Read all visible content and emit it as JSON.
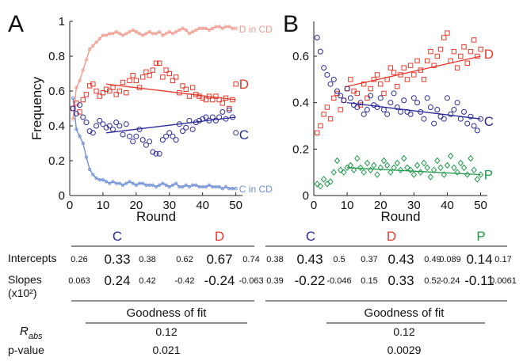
{
  "colors": {
    "C": "#2b2b9a",
    "D": "#e8392a",
    "P": "#1f9a4a",
    "CinCD": "#6f8fd8",
    "DinCD": "#f29a8e",
    "axis": "#222222"
  },
  "panel_labels": [
    "A",
    "B"
  ],
  "chart_data": [
    {
      "panel": "A",
      "type": "scatter",
      "xlabel": "Round",
      "ylabel": "Frequency",
      "xlim": [
        0,
        52
      ],
      "ylim": [
        0,
        1
      ],
      "xticks": [
        "0",
        "10",
        "20",
        "30",
        "40",
        "50"
      ],
      "yticks": [
        "0",
        "0.2",
        "0.4",
        "0.6",
        "0.8",
        "1"
      ],
      "series": [
        {
          "name": "D in CD",
          "kind": "line-marker",
          "color": "#f29a8e",
          "x": [
            1,
            2,
            3,
            4,
            5,
            6,
            7,
            8,
            9,
            10,
            11,
            12,
            13,
            14,
            15,
            16,
            17,
            18,
            19,
            20,
            21,
            22,
            23,
            24,
            25,
            26,
            27,
            28,
            29,
            30,
            31,
            32,
            33,
            34,
            35,
            36,
            37,
            38,
            39,
            40,
            41,
            42,
            43,
            44,
            45,
            46,
            47,
            48,
            49,
            50
          ],
          "y": [
            0.44,
            0.62,
            0.66,
            0.72,
            0.78,
            0.84,
            0.86,
            0.88,
            0.9,
            0.92,
            0.92,
            0.93,
            0.93,
            0.94,
            0.93,
            0.92,
            0.93,
            0.94,
            0.95,
            0.94,
            0.93,
            0.92,
            0.93,
            0.94,
            0.93,
            0.93,
            0.94,
            0.92,
            0.93,
            0.94,
            0.93,
            0.94,
            0.95,
            0.96,
            0.95,
            0.93,
            0.94,
            0.95,
            0.96,
            0.96,
            0.96,
            0.95,
            0.96,
            0.97,
            0.97,
            0.96,
            0.97,
            0.97,
            0.96,
            0.96
          ]
        },
        {
          "name": "C in CD",
          "kind": "line-marker",
          "color": "#6f8fd8",
          "x": [
            1,
            2,
            3,
            4,
            5,
            6,
            7,
            8,
            9,
            10,
            11,
            12,
            13,
            14,
            15,
            16,
            17,
            18,
            19,
            20,
            21,
            22,
            23,
            24,
            25,
            26,
            27,
            28,
            29,
            30,
            31,
            32,
            33,
            34,
            35,
            36,
            37,
            38,
            39,
            40,
            41,
            42,
            43,
            44,
            45,
            46,
            47,
            48,
            49,
            50
          ],
          "y": [
            0.56,
            0.38,
            0.34,
            0.3,
            0.22,
            0.15,
            0.12,
            0.1,
            0.09,
            0.09,
            0.08,
            0.07,
            0.08,
            0.07,
            0.07,
            0.06,
            0.07,
            0.08,
            0.07,
            0.06,
            0.07,
            0.07,
            0.06,
            0.06,
            0.06,
            0.05,
            0.06,
            0.07,
            0.06,
            0.05,
            0.06,
            0.07,
            0.05,
            0.05,
            0.06,
            0.05,
            0.06,
            0.06,
            0.05,
            0.05,
            0.05,
            0.06,
            0.05,
            0.05,
            0.05,
            0.04,
            0.05,
            0.04,
            0.04,
            0.04
          ]
        },
        {
          "name": "D",
          "kind": "marker",
          "marker": "square",
          "color": "#e8392a",
          "x": [
            1,
            2,
            3,
            4,
            5,
            6,
            7,
            8,
            9,
            10,
            11,
            12,
            13,
            14,
            15,
            16,
            17,
            18,
            19,
            20,
            21,
            22,
            23,
            24,
            25,
            26,
            27,
            28,
            29,
            30,
            31,
            32,
            33,
            34,
            35,
            36,
            37,
            38,
            39,
            40,
            41,
            42,
            43,
            44,
            45,
            46,
            47,
            48,
            49,
            50
          ],
          "y": [
            0.5,
            0.53,
            0.48,
            0.55,
            0.58,
            0.63,
            0.64,
            0.6,
            0.57,
            0.59,
            0.61,
            0.6,
            0.62,
            0.58,
            0.6,
            0.65,
            0.59,
            0.66,
            0.69,
            0.66,
            0.62,
            0.68,
            0.71,
            0.69,
            0.72,
            0.76,
            0.76,
            0.68,
            0.72,
            0.7,
            0.66,
            0.68,
            0.59,
            0.63,
            0.61,
            0.57,
            0.62,
            0.58,
            0.57,
            0.56,
            0.55,
            0.57,
            0.55,
            0.57,
            0.55,
            0.53,
            0.56,
            0.5,
            0.55,
            0.64
          ]
        },
        {
          "name": "C",
          "kind": "marker",
          "marker": "circle",
          "color": "#2b2b9a",
          "x": [
            1,
            2,
            3,
            4,
            5,
            6,
            7,
            8,
            9,
            10,
            11,
            12,
            13,
            14,
            15,
            16,
            17,
            18,
            19,
            20,
            21,
            22,
            23,
            24,
            25,
            26,
            27,
            28,
            29,
            30,
            31,
            32,
            33,
            34,
            35,
            36,
            37,
            38,
            39,
            40,
            41,
            42,
            43,
            44,
            45,
            46,
            47,
            48,
            49,
            50
          ],
          "y": [
            0.5,
            0.47,
            0.52,
            0.45,
            0.42,
            0.37,
            0.36,
            0.4,
            0.43,
            0.41,
            0.39,
            0.4,
            0.38,
            0.42,
            0.4,
            0.35,
            0.41,
            0.34,
            0.31,
            0.34,
            0.38,
            0.32,
            0.29,
            0.31,
            0.25,
            0.24,
            0.24,
            0.32,
            0.34,
            0.36,
            0.34,
            0.32,
            0.41,
            0.37,
            0.39,
            0.43,
            0.38,
            0.42,
            0.43,
            0.44,
            0.45,
            0.43,
            0.45,
            0.43,
            0.45,
            0.48,
            0.44,
            0.49,
            0.45,
            0.36
          ]
        }
      ],
      "fits": [
        {
          "name": "D",
          "color": "#e8392a",
          "x": [
            11,
            50
          ],
          "y": [
            0.64,
            0.55
          ]
        },
        {
          "name": "C",
          "color": "#2b2b9a",
          "x": [
            11,
            50
          ],
          "y": [
            0.36,
            0.45
          ]
        }
      ],
      "annotations": [
        {
          "text": "D in CD",
          "series": "D in CD",
          "x": 51,
          "y": 0.96
        },
        {
          "text": "D",
          "series": "D",
          "x": 51,
          "y": 0.64
        },
        {
          "text": "C",
          "series": "C",
          "x": 51,
          "y": 0.35
        },
        {
          "text": "C in CD",
          "series": "C in CD",
          "x": 51,
          "y": 0.04
        }
      ]
    },
    {
      "panel": "B",
      "type": "scatter",
      "xlabel": "Round",
      "ylabel": "",
      "xlim": [
        0,
        52
      ],
      "ylim": [
        0,
        0.75
      ],
      "xticks": [
        "0",
        "10",
        "20",
        "30",
        "40",
        "50"
      ],
      "yticks": [
        "0",
        "0.2",
        "0.4",
        "0.6"
      ],
      "series": [
        {
          "name": "D",
          "kind": "marker",
          "marker": "square",
          "color": "#e8392a",
          "x": [
            1,
            2,
            3,
            4,
            5,
            6,
            7,
            8,
            9,
            10,
            11,
            12,
            13,
            14,
            15,
            16,
            17,
            18,
            19,
            20,
            21,
            22,
            23,
            24,
            25,
            26,
            27,
            28,
            29,
            30,
            31,
            32,
            33,
            34,
            35,
            36,
            37,
            38,
            39,
            40,
            41,
            42,
            43,
            44,
            45,
            46,
            47,
            48,
            49,
            50
          ],
          "y": [
            0.27,
            0.3,
            0.35,
            0.38,
            0.33,
            0.42,
            0.44,
            0.37,
            0.41,
            0.46,
            0.5,
            0.45,
            0.44,
            0.39,
            0.48,
            0.42,
            0.46,
            0.5,
            0.52,
            0.48,
            0.44,
            0.5,
            0.55,
            0.53,
            0.47,
            0.52,
            0.55,
            0.5,
            0.56,
            0.52,
            0.58,
            0.54,
            0.5,
            0.58,
            0.62,
            0.56,
            0.6,
            0.63,
            0.68,
            0.7,
            0.58,
            0.62,
            0.55,
            0.6,
            0.64,
            0.57,
            0.62,
            0.67,
            0.6,
            0.63
          ]
        },
        {
          "name": "C",
          "kind": "marker",
          "marker": "circle",
          "color": "#2b2b9a",
          "x": [
            1,
            2,
            3,
            4,
            5,
            6,
            7,
            8,
            9,
            10,
            11,
            12,
            13,
            14,
            15,
            16,
            17,
            18,
            19,
            20,
            21,
            22,
            23,
            24,
            25,
            26,
            27,
            28,
            29,
            30,
            31,
            32,
            33,
            34,
            35,
            36,
            37,
            38,
            39,
            40,
            41,
            42,
            43,
            44,
            45,
            46,
            47,
            48,
            49,
            50
          ],
          "y": [
            0.68,
            0.62,
            0.55,
            0.52,
            0.48,
            0.5,
            0.45,
            0.43,
            0.41,
            0.46,
            0.42,
            0.39,
            0.38,
            0.4,
            0.35,
            0.37,
            0.43,
            0.39,
            0.38,
            0.42,
            0.37,
            0.35,
            0.4,
            0.44,
            0.38,
            0.36,
            0.41,
            0.36,
            0.35,
            0.42,
            0.4,
            0.36,
            0.33,
            0.42,
            0.38,
            0.31,
            0.37,
            0.34,
            0.33,
            0.42,
            0.35,
            0.37,
            0.4,
            0.33,
            0.36,
            0.31,
            0.34,
            0.3,
            0.28,
            0.33
          ]
        },
        {
          "name": "P",
          "kind": "marker",
          "marker": "diamond",
          "color": "#1f9a4a",
          "x": [
            1,
            2,
            3,
            4,
            5,
            6,
            7,
            8,
            9,
            10,
            11,
            12,
            13,
            14,
            15,
            16,
            17,
            18,
            19,
            20,
            21,
            22,
            23,
            24,
            25,
            26,
            27,
            28,
            29,
            30,
            31,
            32,
            33,
            34,
            35,
            36,
            37,
            38,
            39,
            40,
            41,
            42,
            43,
            44,
            45,
            46,
            47,
            48,
            49,
            50
          ],
          "y": [
            0.05,
            0.04,
            0.07,
            0.05,
            0.06,
            0.1,
            0.15,
            0.11,
            0.1,
            0.12,
            0.13,
            0.11,
            0.16,
            0.12,
            0.1,
            0.14,
            0.11,
            0.13,
            0.09,
            0.12,
            0.15,
            0.13,
            0.1,
            0.12,
            0.14,
            0.11,
            0.16,
            0.12,
            0.11,
            0.09,
            0.13,
            0.1,
            0.14,
            0.12,
            0.08,
            0.11,
            0.15,
            0.12,
            0.09,
            0.13,
            0.17,
            0.12,
            0.1,
            0.14,
            0.12,
            0.09,
            0.16,
            0.11,
            0.07,
            0.09
          ]
        }
      ],
      "fits": [
        {
          "name": "D",
          "color": "#e8392a",
          "x": [
            10,
            50
          ],
          "y": [
            0.47,
            0.6
          ]
        },
        {
          "name": "C",
          "color": "#2b2b9a",
          "x": [
            10,
            50
          ],
          "y": [
            0.4,
            0.33
          ]
        },
        {
          "name": "P",
          "color": "#1f9a4a",
          "x": [
            10,
            50
          ],
          "y": [
            0.12,
            0.09
          ]
        }
      ],
      "annotations": [
        {
          "text": "D",
          "series": "D",
          "x": 51,
          "y": 0.61
        },
        {
          "text": "C",
          "series": "C",
          "x": 51,
          "y": 0.32
        },
        {
          "text": "P",
          "series": "P",
          "x": 51,
          "y": 0.09
        }
      ]
    },
    {
      "panel": "A",
      "type": "table",
      "groups": [
        {
          "label": "C",
          "color": "#2b2b9a"
        },
        {
          "label": "D",
          "color": "#e8392a"
        }
      ],
      "rows": [
        {
          "label": "Intercepts",
          "values": [
            [
              "0.26",
              "0.33",
              "0.38"
            ],
            [
              "0.62",
              "0.67",
              "0.74"
            ]
          ]
        },
        {
          "label": "Slopes",
          "sublabel": "(x10²)",
          "values": [
            [
              "0.063",
              "0.24",
              "0.42"
            ],
            [
              "-0.42",
              "-0.24",
              "-0.063"
            ]
          ]
        }
      ],
      "fit_title": "Goodness of fit",
      "fit_rows": [
        {
          "label": "R",
          "sub": "abs",
          "value": "0.12"
        },
        {
          "label": "p-value",
          "value": "0.021"
        }
      ]
    },
    {
      "panel": "B",
      "type": "table",
      "groups": [
        {
          "label": "C",
          "color": "#2b2b9a"
        },
        {
          "label": "D",
          "color": "#e8392a"
        },
        {
          "label": "P",
          "color": "#1f9a4a"
        }
      ],
      "rows": [
        {
          "label": "",
          "values": [
            [
              "0.38",
              "0.43",
              "0.5"
            ],
            [
              "0.37",
              "0.43",
              "0.49"
            ],
            [
              "0.089",
              "0.14",
              "0.17"
            ]
          ]
        },
        {
          "label": "",
          "values": [
            [
              "0.39",
              "-0.22",
              "-0.046"
            ],
            [
              "0.15",
              "0.33",
              "0.52"
            ],
            [
              "-0.24",
              "-0.11",
              "0.0061"
            ]
          ]
        }
      ],
      "fit_title": "Goodness of fit",
      "fit_rows": [
        {
          "value": "0.12"
        },
        {
          "value": "0.0029"
        }
      ]
    }
  ]
}
